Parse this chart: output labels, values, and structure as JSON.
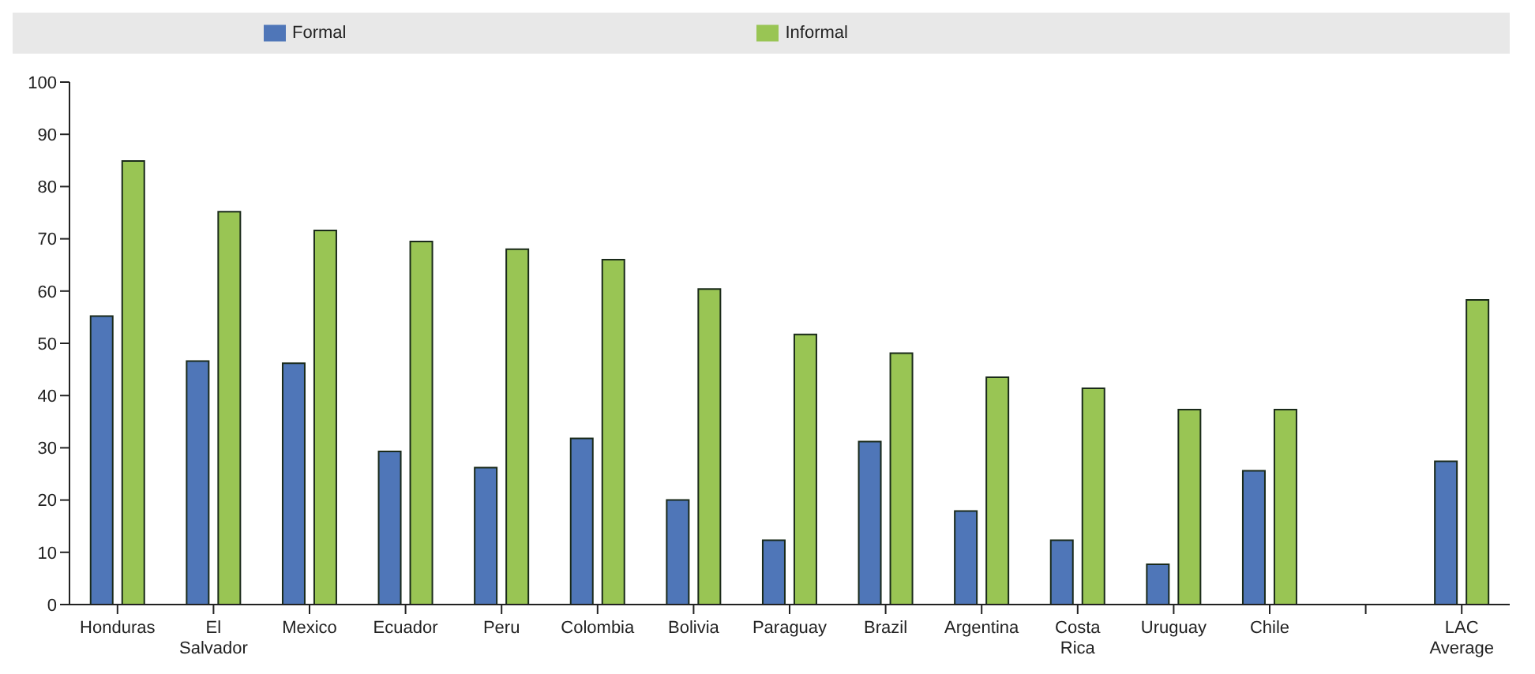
{
  "chart_data": {
    "type": "bar",
    "categories": [
      "Honduras",
      "El Salvador",
      "Mexico",
      "Ecuador",
      "Peru",
      "Colombia",
      "Bolivia",
      "Paraguay",
      "Brazil",
      "Argentina",
      "Costa Rica",
      "Uruguay",
      "Chile",
      null,
      "LAC Average"
    ],
    "series": [
      {
        "name": "Formal",
        "color": "#4f76b8",
        "values": [
          55.2,
          46.6,
          46.2,
          29.3,
          26.2,
          31.8,
          20.0,
          12.3,
          31.2,
          17.9,
          12.3,
          7.7,
          25.6,
          null,
          27.4
        ]
      },
      {
        "name": "Informal",
        "color": "#99c554",
        "values": [
          84.9,
          75.2,
          71.6,
          69.5,
          68.0,
          66.0,
          60.4,
          51.7,
          48.1,
          43.5,
          41.4,
          37.3,
          37.3,
          null,
          58.3
        ]
      }
    ],
    "ylim": [
      0,
      100
    ],
    "yticks": [
      0,
      10,
      20,
      30,
      40,
      50,
      60,
      70,
      80,
      90,
      100
    ],
    "grid": false,
    "legend": "top"
  }
}
